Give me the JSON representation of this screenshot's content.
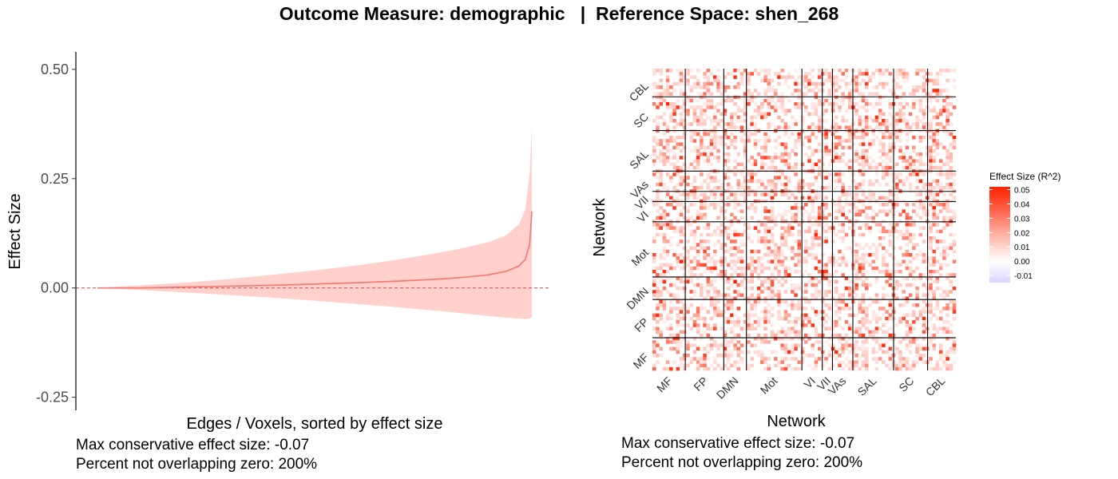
{
  "title": "Outcome Measure: demographic   |  Reference Space: shen_268",
  "colors": {
    "line": "#f8766d",
    "band": "#ffd0cc",
    "zero_line": "#e8474a",
    "heat_high": "#ff2200",
    "heat_mid": "#ffffff",
    "heat_low": "#ddd4ff",
    "grid_line": "#000000"
  },
  "chart_data": [
    {
      "type": "line",
      "xlabel": "Edges / Voxels, sorted by effect size",
      "ylabel": "Effect Size",
      "ylim": [
        -0.28,
        0.54
      ],
      "yticks": [
        "0.50",
        "0.25",
        "0.00",
        "-0.25"
      ],
      "ytick_values": [
        0.5,
        0.25,
        0.0,
        -0.25
      ],
      "x": [
        0,
        0.1,
        0.2,
        0.3,
        0.4,
        0.5,
        0.6,
        0.7,
        0.8,
        0.85,
        0.9,
        0.94,
        0.97,
        0.985,
        0.995,
        1.0
      ],
      "series": [
        {
          "values": [
            0.0,
            0.0,
            0.002,
            0.004,
            0.006,
            0.009,
            0.012,
            0.016,
            0.021,
            0.025,
            0.03,
            0.038,
            0.05,
            0.065,
            0.1,
            0.175
          ]
        },
        {
          "values": [
            0.0,
            0.006,
            0.012,
            0.02,
            0.03,
            0.04,
            0.052,
            0.066,
            0.083,
            0.093,
            0.105,
            0.12,
            0.145,
            0.18,
            0.26,
            0.37
          ]
        },
        {
          "values": [
            0.0,
            -0.005,
            -0.01,
            -0.016,
            -0.022,
            -0.029,
            -0.037,
            -0.045,
            -0.054,
            -0.059,
            -0.064,
            -0.068,
            -0.07,
            -0.071,
            -0.07,
            -0.065
          ]
        }
      ],
      "notes": [
        "Max conservative effect size: -0.07",
        "Percent not overlapping zero: 200%"
      ]
    },
    {
      "type": "heatmap",
      "xlabel": "Network",
      "ylabel": "Network",
      "networks": [
        "MF",
        "FP",
        "DMN",
        "Mot",
        "VI",
        "VII",
        "VAs",
        "SAL",
        "SC",
        "CBL"
      ],
      "network_sizes": [
        29,
        34,
        20,
        49,
        18,
        9,
        18,
        36,
        30,
        25
      ],
      "legend": {
        "title": "Effect Size (R^2)",
        "ticks": [
          "0.05",
          "0.04",
          "0.03",
          "0.02",
          "0.01",
          "0.00",
          "-0.01"
        ],
        "tick_values": [
          0.05,
          0.04,
          0.03,
          0.02,
          0.01,
          0.0,
          -0.01
        ],
        "range": [
          -0.015,
          0.052
        ]
      },
      "notes": [
        "Max conservative effect size: -0.07",
        "Percent not overlapping zero: 200%"
      ]
    }
  ]
}
